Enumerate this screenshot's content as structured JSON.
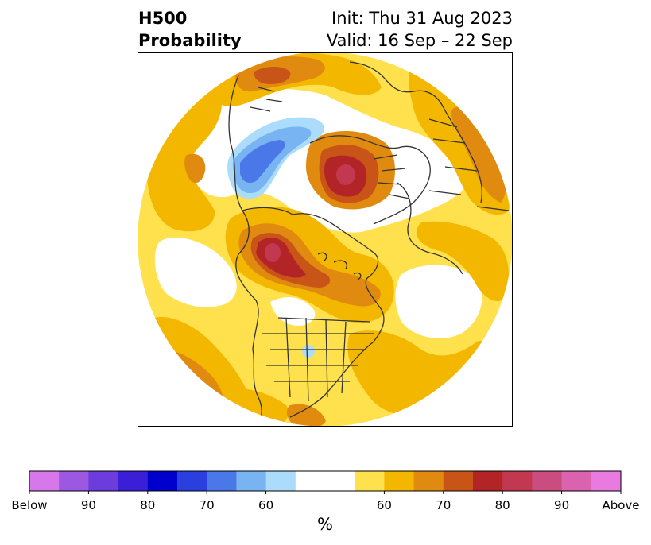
{
  "title": {
    "left_line1": "H500",
    "left_line2": "Probability",
    "right_line1": "Init: Thu 31 Aug 2023",
    "right_line2": "Valid: 16 Sep – 22 Sep"
  },
  "colorbar": {
    "unit": "%",
    "colors": [
      "#d678ec",
      "#9d58e2",
      "#6d3cdc",
      "#3a1ed8",
      "#0000cc",
      "#2a3fdd",
      "#4a78e8",
      "#78b3f2",
      "#acdcfb",
      "#ffffff",
      "#ffffff",
      "#ffe04d",
      "#f4b700",
      "#e08a10",
      "#c85418",
      "#b32426",
      "#c23850",
      "#cb4d80",
      "#db62ae",
      "#e87ae0"
    ],
    "tick_labels": [
      "Below",
      "90",
      "80",
      "70",
      "60",
      "60",
      "70",
      "80",
      "90",
      "Above"
    ]
  },
  "palette": {
    "above_light": "#ffe04d",
    "above_mid": "#f4b700",
    "above_dark": "#e08a10",
    "above_orange": "#c85418",
    "above_red": "#b32426",
    "above_rose": "#c23850",
    "below_light": "#acdcfb",
    "below_mid": "#78b3f2",
    "below_dark": "#4a78e8",
    "outline": "#333333"
  }
}
